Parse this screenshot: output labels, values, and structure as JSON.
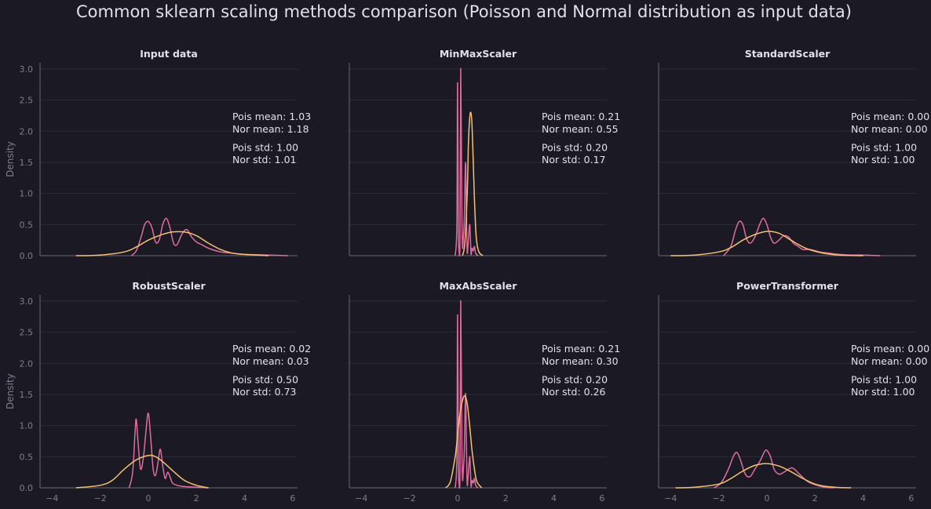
{
  "title": "Common sklearn scaling methods comparison (Poisson and Normal distribution as input data)",
  "colors": {
    "background": "#1b1a24",
    "poisson": "#e06c9f",
    "normal": "#f4c170",
    "grid": "#2c2a3a",
    "text": "#e2e0ec",
    "tick": "#7f7c8e"
  },
  "chart_data": [
    {
      "type": "area",
      "title": "Input data",
      "ylabel": "Density",
      "xlim": [
        -4.5,
        6.2
      ],
      "ylim": [
        0,
        3.1
      ],
      "xticks": [
        "−4",
        "−2",
        "0",
        "2",
        "4",
        "6"
      ],
      "yticks": [
        "0.0",
        "0.5",
        "1.0",
        "1.5",
        "2.0",
        "2.5",
        "3.0"
      ],
      "annotations": {
        "pois_mean": "Pois mean: 1.03",
        "nor_mean": "Nor mean: 1.18",
        "pois_std": "Pois std: 1.00",
        "nor_std": "Nor std: 1.01"
      },
      "series": [
        {
          "x": [
            -0.7,
            -0.5,
            -0.3,
            -0.15,
            0,
            0.15,
            0.3,
            0.45,
            0.6,
            0.75,
            0.9,
            1.05,
            1.2,
            1.4,
            1.6,
            1.8,
            2.0,
            2.2,
            2.5,
            3.0,
            3.5,
            4.0,
            5.0,
            5.8
          ],
          "y": [
            0,
            0.08,
            0.3,
            0.5,
            0.55,
            0.45,
            0.22,
            0.25,
            0.5,
            0.6,
            0.45,
            0.2,
            0.18,
            0.35,
            0.42,
            0.3,
            0.22,
            0.18,
            0.12,
            0.06,
            0.04,
            0.02,
            0.01,
            0
          ]
        },
        {
          "x": [
            -3.0,
            -2.0,
            -1.0,
            -0.5,
            0,
            0.5,
            1.0,
            1.5,
            2.0,
            2.5,
            3.0,
            3.5,
            4.0,
            5.0
          ],
          "y": [
            0,
            0.01,
            0.06,
            0.14,
            0.25,
            0.33,
            0.38,
            0.38,
            0.32,
            0.2,
            0.1,
            0.04,
            0.02,
            0
          ]
        }
      ]
    },
    {
      "type": "area",
      "title": "MinMaxScaler",
      "ylabel": "",
      "xlim": [
        -4.5,
        6.2
      ],
      "ylim": [
        0,
        3.1
      ],
      "xticks": [
        "−4",
        "−2",
        "0",
        "2",
        "4",
        "6"
      ],
      "yticks": [
        "0.0",
        "0.5",
        "1.0",
        "1.5",
        "2.0",
        "2.5",
        "3.0"
      ],
      "annotations": {
        "pois_mean": "Pois mean: 0.21",
        "nor_mean": "Nor mean: 0.55",
        "pois_std": "Pois std: 0.20",
        "nor_std": "Nor std: 0.17"
      },
      "series": [
        {
          "x": [
            -0.1,
            -0.03,
            0,
            0.03,
            0.06,
            0.1,
            0.13,
            0.17,
            0.2,
            0.24,
            0.28,
            0.33,
            0.37,
            0.4,
            0.44,
            0.5,
            0.53,
            0.56,
            0.6,
            0.65,
            0.7,
            0.75,
            0.85
          ],
          "y": [
            0,
            0.5,
            2.78,
            0.5,
            0.08,
            0.3,
            3.0,
            1.0,
            0.15,
            0.3,
            0.6,
            1.5,
            0.6,
            0.05,
            0.2,
            0.5,
            0.3,
            0.02,
            0.12,
            0.08,
            0.15,
            0.04,
            0
          ]
        },
        {
          "x": [
            0.2,
            0.3,
            0.4,
            0.45,
            0.5,
            0.55,
            0.6,
            0.65,
            0.7,
            0.75,
            0.8,
            0.9,
            1.05
          ],
          "y": [
            0,
            0.2,
            1.0,
            1.8,
            2.2,
            2.3,
            2.1,
            1.5,
            0.9,
            0.45,
            0.2,
            0.05,
            0
          ]
        }
      ]
    },
    {
      "type": "area",
      "title": "StandardScaler",
      "ylabel": "",
      "xlim": [
        -4.5,
        6.2
      ],
      "ylim": [
        0,
        3.1
      ],
      "xticks": [
        "−4",
        "−2",
        "0",
        "2",
        "4",
        "6"
      ],
      "yticks": [
        "0.0",
        "0.5",
        "1.0",
        "1.5",
        "2.0",
        "2.5",
        "3.0"
      ],
      "annotations": {
        "pois_mean": "Pois mean: 0.00",
        "nor_mean": "Nor mean: 0.00",
        "pois_std": "Pois std: 1.00",
        "nor_std": "Nor std: 1.00"
      },
      "series": [
        {
          "x": [
            -1.8,
            -1.5,
            -1.3,
            -1.15,
            -1.0,
            -0.85,
            -0.7,
            -0.5,
            -0.3,
            -0.15,
            0,
            0.15,
            0.3,
            0.5,
            0.7,
            0.9,
            1.1,
            1.3,
            1.5,
            1.8,
            2.2,
            2.6,
            3.0,
            3.5,
            4.0,
            4.7
          ],
          "y": [
            0,
            0.15,
            0.42,
            0.55,
            0.5,
            0.28,
            0.2,
            0.3,
            0.5,
            0.6,
            0.5,
            0.3,
            0.2,
            0.25,
            0.32,
            0.3,
            0.2,
            0.15,
            0.1,
            0.1,
            0.06,
            0.04,
            0.02,
            0.01,
            0.01,
            0
          ]
        },
        {
          "x": [
            -4.0,
            -3.0,
            -2.0,
            -1.5,
            -1.0,
            -0.5,
            0,
            0.5,
            1.0,
            1.5,
            2.0,
            2.5,
            3.0,
            4.0
          ],
          "y": [
            0,
            0.01,
            0.06,
            0.13,
            0.25,
            0.34,
            0.39,
            0.36,
            0.25,
            0.14,
            0.07,
            0.03,
            0.01,
            0
          ]
        }
      ]
    },
    {
      "type": "area",
      "title": "RobustScaler",
      "ylabel": "Density",
      "xlim": [
        -4.5,
        6.2
      ],
      "ylim": [
        0,
        3.1
      ],
      "xticks": [
        "−4",
        "−2",
        "0",
        "2",
        "4",
        "6"
      ],
      "yticks": [
        "0.0",
        "0.5",
        "1.0",
        "1.5",
        "2.0",
        "2.5",
        "3.0"
      ],
      "annotations": {
        "pois_mean": "Pois mean: 0.02",
        "nor_mean": "Nor mean: 0.03",
        "pois_std": "Pois std: 0.50",
        "nor_std": "Nor std: 0.73"
      },
      "series": [
        {
          "x": [
            -0.8,
            -0.65,
            -0.55,
            -0.5,
            -0.42,
            -0.32,
            -0.2,
            -0.1,
            0,
            0.1,
            0.2,
            0.3,
            0.4,
            0.5,
            0.6,
            0.7,
            0.8,
            0.9,
            1.0,
            1.2,
            1.5,
            2.0,
            2.5
          ],
          "y": [
            0,
            0.25,
            0.9,
            1.1,
            0.7,
            0.3,
            0.5,
            0.9,
            1.2,
            0.8,
            0.3,
            0.2,
            0.4,
            0.62,
            0.35,
            0.15,
            0.25,
            0.18,
            0.08,
            0.04,
            0.02,
            0.01,
            0
          ]
        },
        {
          "x": [
            -3.0,
            -2.0,
            -1.5,
            -1.0,
            -0.5,
            0,
            0.3,
            0.6,
            1.0,
            1.5,
            2.0,
            2.5
          ],
          "y": [
            0,
            0.04,
            0.12,
            0.3,
            0.45,
            0.52,
            0.5,
            0.42,
            0.28,
            0.12,
            0.04,
            0
          ]
        }
      ]
    },
    {
      "type": "area",
      "title": "MaxAbsScaler",
      "ylabel": "",
      "xlim": [
        -4.5,
        6.2
      ],
      "ylim": [
        0,
        3.1
      ],
      "xticks": [
        "−4",
        "−2",
        "0",
        "2",
        "4",
        "6"
      ],
      "yticks": [
        "0.0",
        "0.5",
        "1.0",
        "1.5",
        "2.0",
        "2.5",
        "3.0"
      ],
      "annotations": {
        "pois_mean": "Pois mean: 0.21",
        "nor_mean": "Nor mean: 0.30",
        "pois_std": "Pois std: 0.20",
        "nor_std": "Nor std: 0.26"
      },
      "series": [
        {
          "x": [
            -0.1,
            -0.03,
            0,
            0.03,
            0.06,
            0.1,
            0.13,
            0.17,
            0.2,
            0.24,
            0.28,
            0.33,
            0.37,
            0.4,
            0.44,
            0.5,
            0.53,
            0.56,
            0.6,
            0.65,
            0.7,
            0.75,
            0.85
          ],
          "y": [
            0,
            0.5,
            2.78,
            0.5,
            0.08,
            0.3,
            3.0,
            1.0,
            0.15,
            0.3,
            0.6,
            1.52,
            0.6,
            0.05,
            0.2,
            0.5,
            0.3,
            0.02,
            0.12,
            0.08,
            0.15,
            0.04,
            0
          ]
        },
        {
          "x": [
            -0.5,
            -0.3,
            -0.1,
            0,
            0.1,
            0.2,
            0.3,
            0.4,
            0.5,
            0.6,
            0.7,
            0.8,
            1.0
          ],
          "y": [
            0,
            0.1,
            0.5,
            0.85,
            1.2,
            1.4,
            1.48,
            1.35,
            1.0,
            0.6,
            0.3,
            0.1,
            0
          ]
        }
      ]
    },
    {
      "type": "area",
      "title": "PowerTransformer",
      "ylabel": "",
      "xlim": [
        -4.5,
        6.2
      ],
      "ylim": [
        0,
        3.1
      ],
      "xticks": [
        "−4",
        "−2",
        "0",
        "2",
        "4",
        "6"
      ],
      "yticks": [
        "0.0",
        "0.5",
        "1.0",
        "1.5",
        "2.0",
        "2.5",
        "3.0"
      ],
      "annotations": {
        "pois_mean": "Pois mean: 0.00",
        "nor_mean": "Nor mean: 0.00",
        "pois_std": "Pois std: 1.00",
        "nor_std": "Nor std: 1.00"
      },
      "series": [
        {
          "x": [
            -2.2,
            -1.9,
            -1.6,
            -1.4,
            -1.25,
            -1.1,
            -0.9,
            -0.7,
            -0.5,
            -0.3,
            -0.1,
            0,
            0.15,
            0.3,
            0.5,
            0.7,
            0.9,
            1.05,
            1.2,
            1.4,
            1.7,
            2.0,
            2.4,
            2.8
          ],
          "y": [
            0,
            0.08,
            0.3,
            0.5,
            0.57,
            0.45,
            0.22,
            0.18,
            0.3,
            0.42,
            0.58,
            0.6,
            0.5,
            0.3,
            0.22,
            0.25,
            0.3,
            0.32,
            0.28,
            0.2,
            0.1,
            0.05,
            0.01,
            0
          ]
        },
        {
          "x": [
            -3.8,
            -3.0,
            -2.0,
            -1.5,
            -1.0,
            -0.5,
            0,
            0.5,
            1.0,
            1.5,
            2.0,
            2.5,
            3.0,
            3.5
          ],
          "y": [
            0,
            0.01,
            0.06,
            0.15,
            0.27,
            0.36,
            0.39,
            0.35,
            0.26,
            0.15,
            0.06,
            0.02,
            0.005,
            0
          ]
        }
      ]
    }
  ]
}
